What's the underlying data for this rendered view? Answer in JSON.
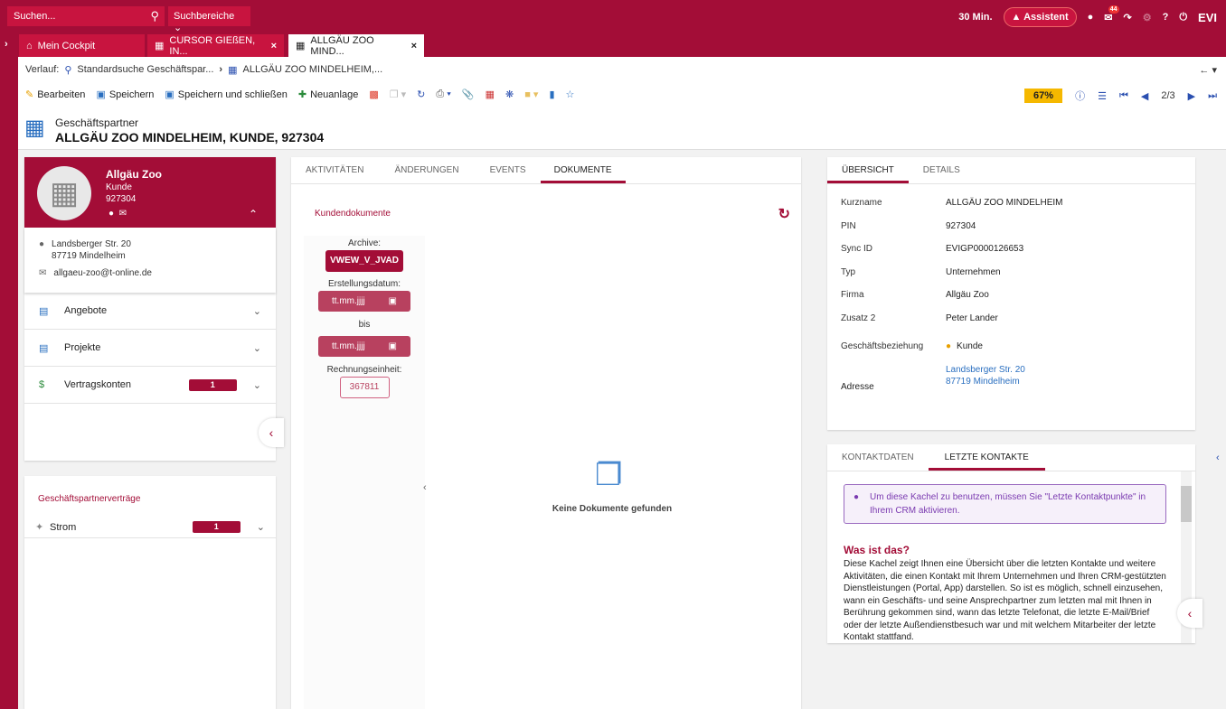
{
  "topbar": {
    "search_placeholder": "Suchen...",
    "search_scope": "Suchbereiche",
    "timer": "30 Min.",
    "assistant": "Assistent",
    "notif_count": "44",
    "brand": "EVI"
  },
  "tabs": [
    {
      "label": "Mein Cockpit"
    },
    {
      "label": "CURSOR GIEßEN, IN..."
    },
    {
      "label": "ALLGÄU ZOO MIND..."
    }
  ],
  "breadcrumb": {
    "label": "Verlauf:",
    "items": [
      "Standardsuche Geschäftspar...",
      "ALLGÄU ZOO MINDELHEIM,..."
    ]
  },
  "toolbar": {
    "edit": "Bearbeiten",
    "save": "Speichern",
    "save_close": "Speichern und schließen",
    "new": "Neuanlage",
    "progress": "67%",
    "page": "2/3"
  },
  "header": {
    "type": "Geschäftspartner",
    "title": "ALLGÄU ZOO MINDELHEIM, KUNDE, 927304"
  },
  "profile": {
    "name": "Allgäu Zoo",
    "role": "Kunde",
    "id": "927304",
    "street": "Landsberger Str. 20",
    "city": "87719 Mindelheim",
    "email": "allgaeu-zoo@t-online.de"
  },
  "sections": [
    {
      "label": "Angebote"
    },
    {
      "label": "Projekte"
    },
    {
      "label": "Vertragskonten",
      "count": "1"
    }
  ],
  "contracts": {
    "title": "Geschäftspartnerverträge",
    "items": [
      {
        "label": "Strom",
        "count": "1"
      }
    ]
  },
  "middle": {
    "tabs": [
      "AKTIVITÄTEN",
      "ÄNDERUNGEN",
      "EVENTS",
      "DOKUMENTE"
    ],
    "section": "Kundendokumente",
    "archive_label": "Archive:",
    "archive": "VWEW_V_JVAD",
    "date_label": "Erstellungsdatum:",
    "date_placeholder": "tt.mm.jjjj",
    "bis": "bis",
    "unit_label": "Rechnungseinheit:",
    "unit": "367811",
    "empty": "Keine Dokumente gefunden"
  },
  "overview": {
    "tabs": [
      "ÜBERSICHT",
      "DETAILS"
    ],
    "fields": [
      {
        "k": "Kurzname",
        "v": "ALLGÄU ZOO MINDELHEIM"
      },
      {
        "k": "PIN",
        "v": "927304"
      },
      {
        "k": "Sync ID",
        "v": "EVIGP0000126653"
      },
      {
        "k": "Typ",
        "v": "Unternehmen"
      },
      {
        "k": "Firma",
        "v": "Allgäu Zoo"
      },
      {
        "k": "Zusatz 2",
        "v": "Peter Lander"
      }
    ],
    "relation_label": "Geschäftsbeziehung",
    "relation": "Kunde",
    "address_label": "Adresse",
    "address1": "Landsberger Str. 20",
    "address2": "87719 Mindelheim"
  },
  "contacts": {
    "tabs": [
      "KONTAKTDATEN",
      "LETZTE KONTAKTE"
    ],
    "info": "Um diese Kachel zu benutzen, müssen Sie \"Letzte Kontaktpunkte\" in Ihrem CRM aktivieren.",
    "heading": "Was ist das?",
    "body": "Diese Kachel zeigt Ihnen eine Übersicht über die letzten Kontakte und weitere Aktivitäten, die einen Kontakt mit Ihrem Unternehmen und Ihren CRM-gestützten Dienstleistungen (Portal, App) darstellen. So ist es möglich, schnell einzusehen, wann ein Geschäfts- und seine Ansprechpartner zum letzten mal mit Ihnen in Berührung gekommen sind, wann das letzte Telefonat, die letzte E-Mail/Brief oder der letzte Außendienstbesuch war und mit welchem Mitarbeiter der letzte Kontakt stattfand."
  }
}
